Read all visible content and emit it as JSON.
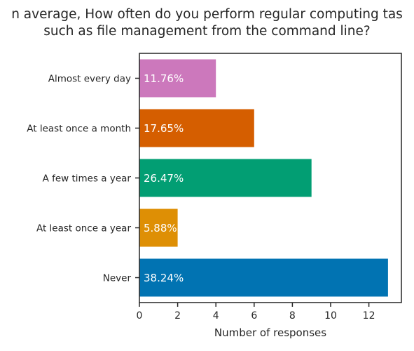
{
  "chart_data": {
    "type": "bar",
    "orientation": "horizontal",
    "title_lines": [
      "n average, How often do you perform regular computing tas",
      "such as file management from the command line?"
    ],
    "xlabel": "Number of responses",
    "ylabel": "",
    "xlim": [
      0,
      13.7
    ],
    "xticks": [
      "0",
      "2",
      "4",
      "6",
      "8",
      "10",
      "12"
    ],
    "grid": false,
    "categories": [
      "Almost every day",
      "At least once a month",
      "A few times a year",
      "At least once a year",
      "Never"
    ],
    "values": [
      4,
      6,
      9,
      2,
      13
    ],
    "data_labels": [
      "11.76%",
      "17.65%",
      "26.47%",
      "5.88%",
      "38.24%"
    ],
    "colors": [
      "#cc78bc",
      "#d55e00",
      "#029e73",
      "#de8f05",
      "#0173b2"
    ],
    "label_color": "#ffffff"
  }
}
